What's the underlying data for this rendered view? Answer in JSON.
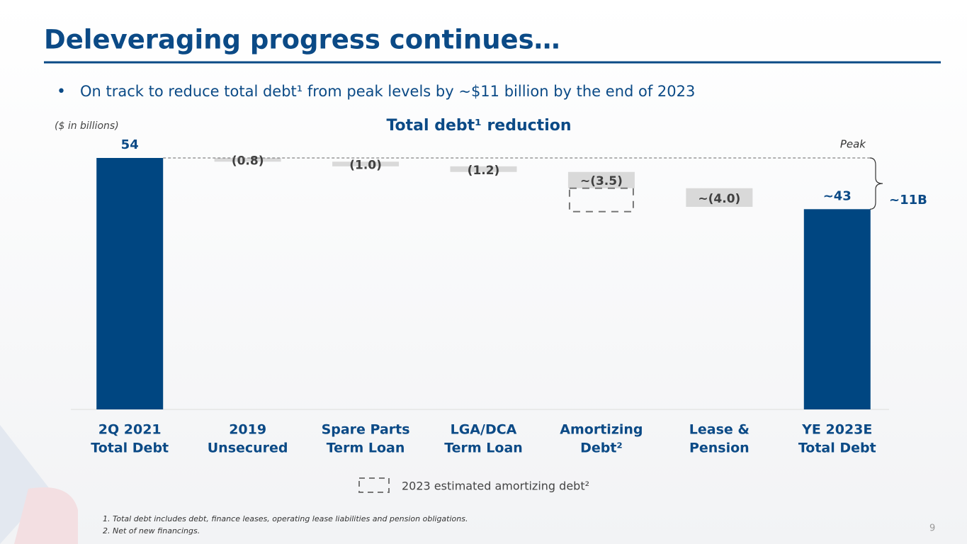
{
  "header": {
    "title": "Deleveraging progress continues…",
    "bullet": "On track to reduce total debt¹ from peak levels by ~$11 billion by the end of 2023"
  },
  "chart_data": {
    "type": "waterfall",
    "title": "Total debt¹ reduction",
    "unit_note": "($ in billions)",
    "categories": [
      [
        "2Q 2021",
        "Total Debt"
      ],
      [
        "2019",
        "Unsecured"
      ],
      [
        "Spare Parts",
        "Term Loan"
      ],
      [
        "LGA/DCA",
        "Term Loan"
      ],
      [
        "Amortizing",
        "Debt²"
      ],
      [
        "Lease &",
        "Pension"
      ],
      [
        "YE 2023E",
        "Total Debt"
      ]
    ],
    "values": [
      54,
      -0.8,
      -1.0,
      -1.2,
      -3.5,
      -4.0,
      43
    ],
    "value_labels": [
      "54",
      "(0.8)",
      "(1.0)",
      "(1.2)",
      "~(3.5)",
      "~(4.0)",
      "~43"
    ],
    "is_total": [
      true,
      false,
      false,
      false,
      false,
      false,
      true
    ],
    "total_color": "#004681",
    "step_color": "#d9d9d9",
    "annotations": {
      "peak": "Peak",
      "reduction": "~11B"
    },
    "legend": "2023 estimated amortizing debt²"
  },
  "footnotes": [
    "1. Total debt includes debt, finance leases, operating lease liabilities and pension obligations.",
    "2. Net of new financings."
  ],
  "page_number": "9"
}
